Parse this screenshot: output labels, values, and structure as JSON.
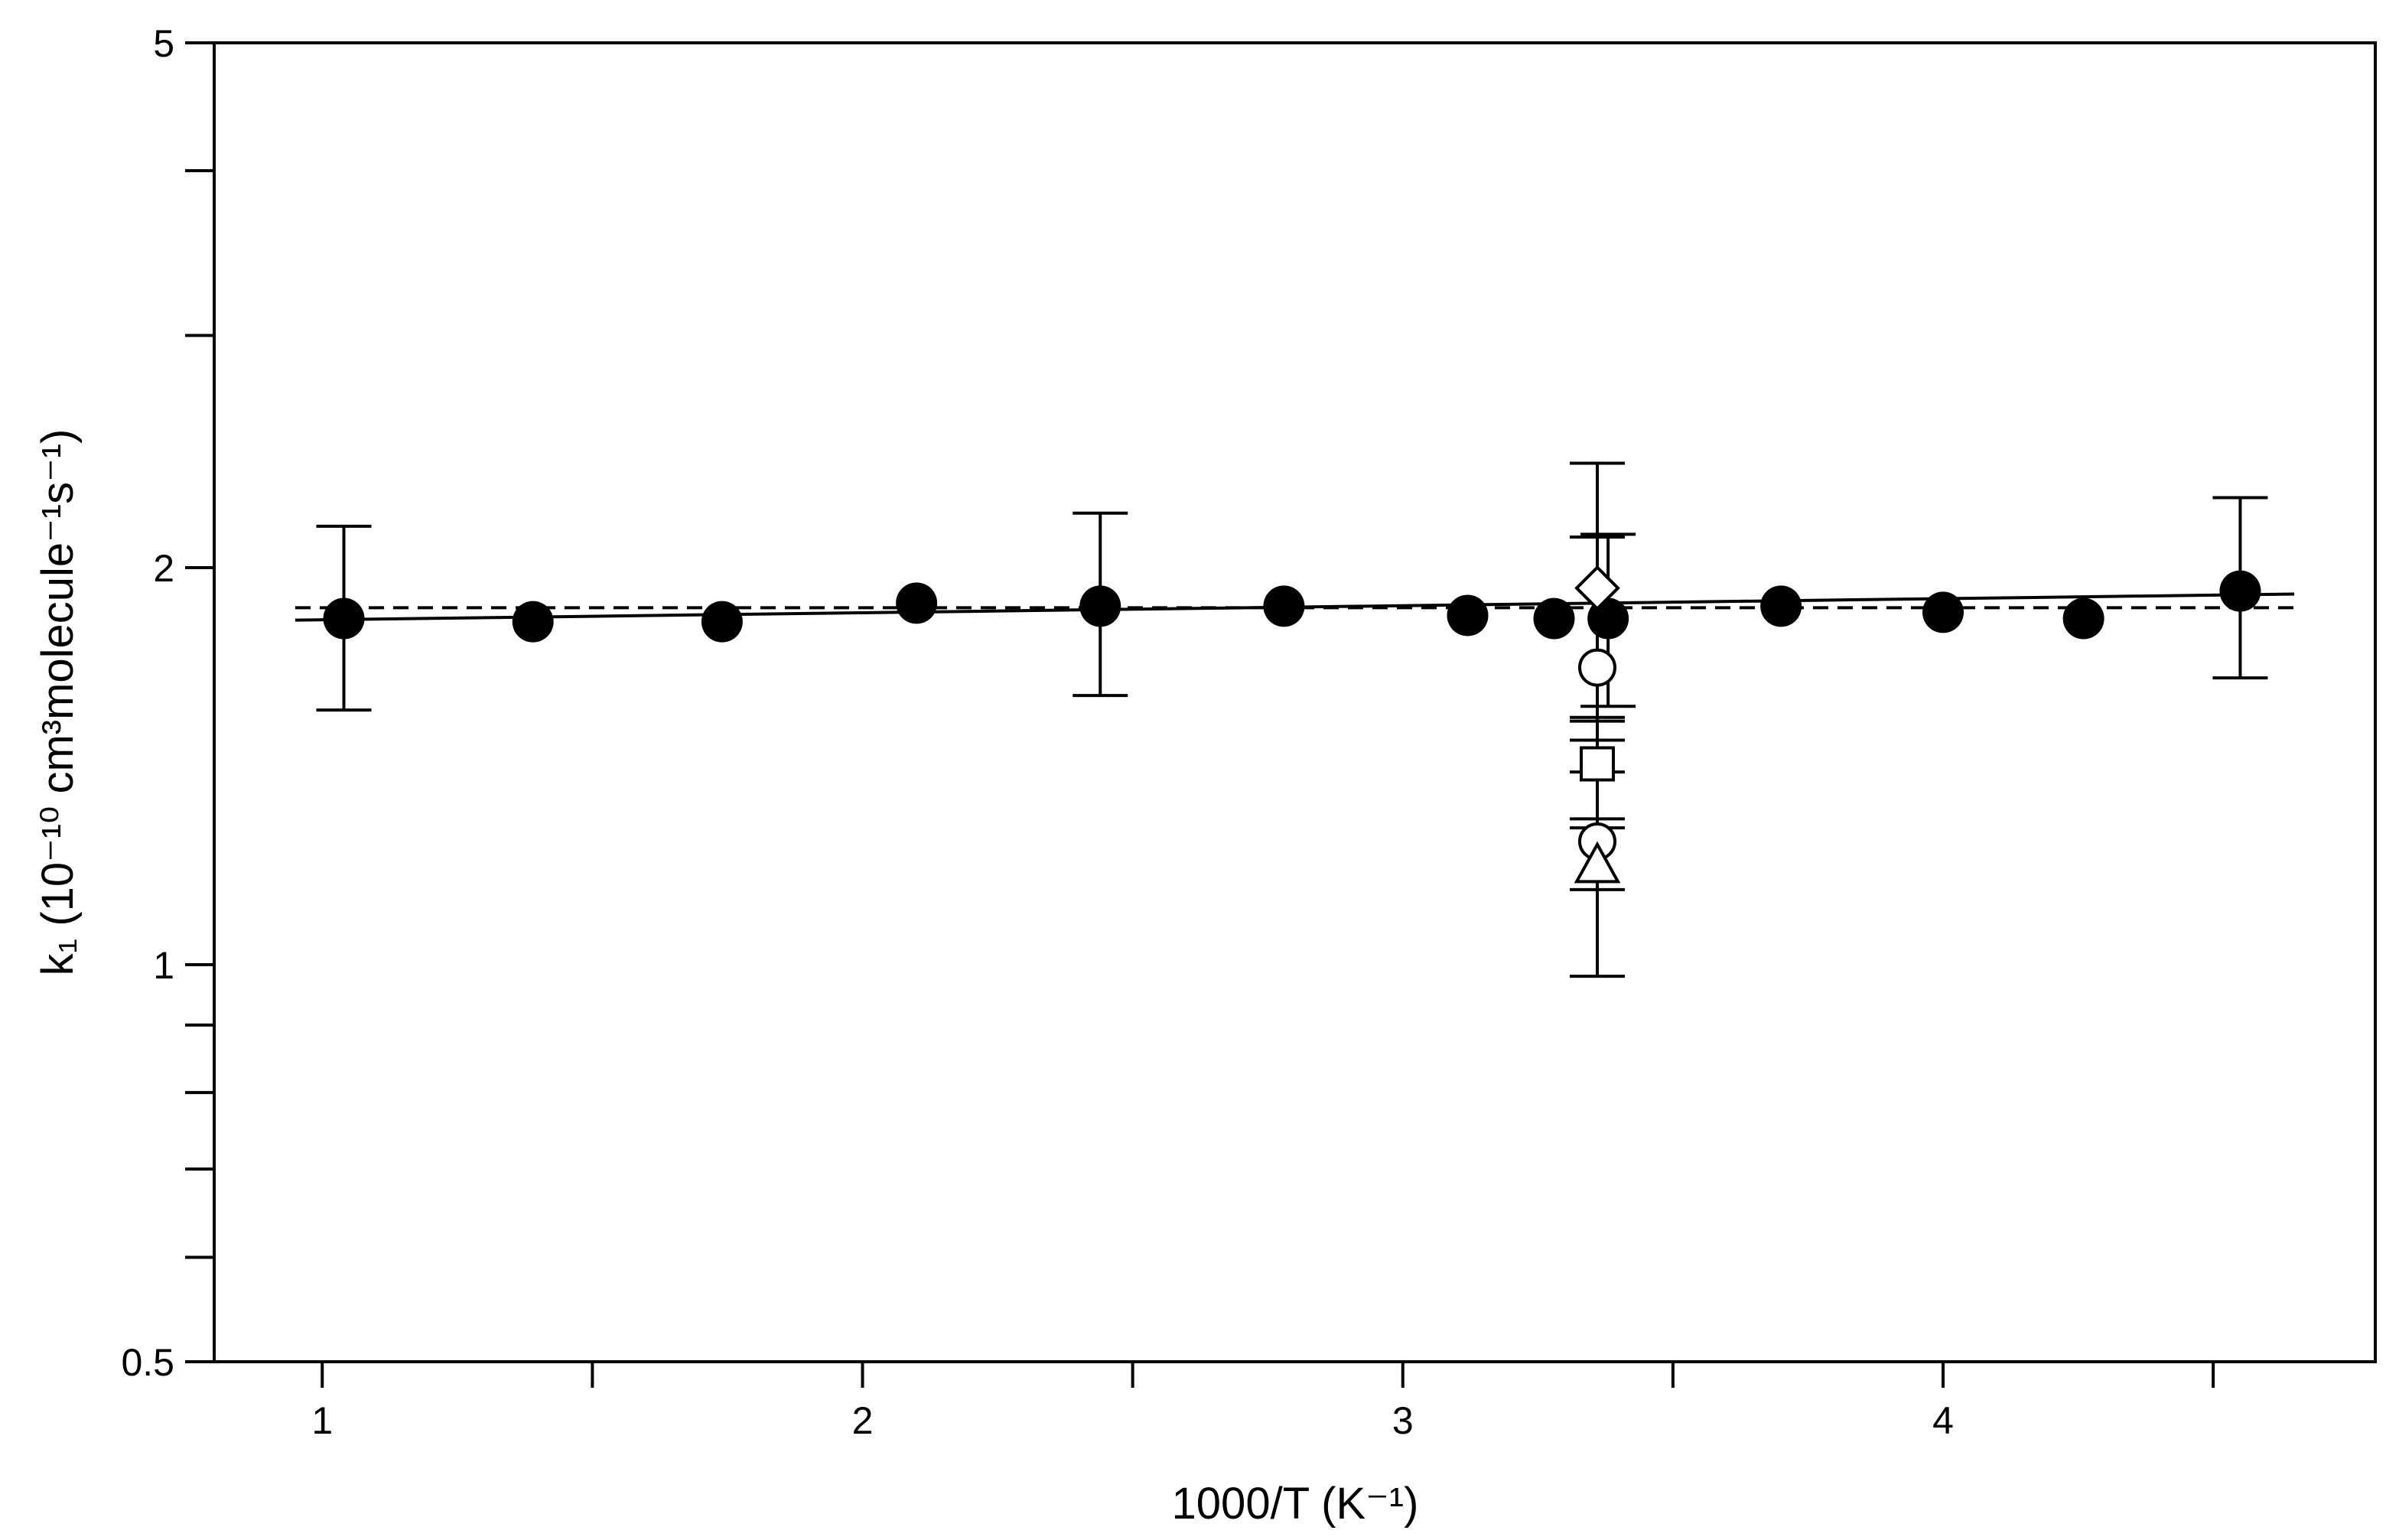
{
  "chart_data": {
    "type": "scatter",
    "xlabel": "1000/T (K⁻¹)",
    "ylabel": "k₁ (10⁻¹⁰ cm³molecule⁻¹s⁻¹)",
    "xlim": [
      0.8,
      4.8
    ],
    "ylim": [
      0.5,
      5
    ],
    "y_scale": "log",
    "x_ticks": [
      1,
      2,
      3,
      4
    ],
    "x_tick_labels": [
      "1",
      "2",
      "3",
      "4"
    ],
    "x_minor_ticks": [
      1.5,
      2.5,
      3.5,
      4.5
    ],
    "y_ticks": [
      0.5,
      1,
      2,
      5
    ],
    "y_tick_labels": [
      "0.5",
      "1",
      "2",
      "5"
    ],
    "y_minor_ticks": [
      0.6,
      0.7,
      0.8,
      0.9,
      3,
      4
    ],
    "grid": false,
    "series": [
      {
        "marker": "filled-circle",
        "x": [
          1.04,
          1.39,
          1.74,
          2.1,
          2.44,
          2.78,
          3.12,
          3.28,
          3.38,
          3.7,
          4.0,
          4.26,
          4.55
        ],
        "y": [
          1.83,
          1.82,
          1.82,
          1.88,
          1.87,
          1.87,
          1.84,
          1.83,
          1.83,
          1.87,
          1.85,
          1.83,
          1.92
        ],
        "err_low": [
          0.27,
          null,
          null,
          null,
          0.27,
          null,
          null,
          null,
          0.26,
          null,
          null,
          null,
          0.27
        ],
        "err_high": [
          0.32,
          null,
          null,
          null,
          0.33,
          null,
          null,
          null,
          0.29,
          null,
          null,
          null,
          0.34
        ]
      },
      {
        "marker": "open-diamond",
        "x": [
          3.36
        ],
        "y": [
          1.93
        ],
        "err_low": [
          0.4
        ],
        "err_high": [
          0.47
        ]
      },
      {
        "marker": "open-circle",
        "x": [
          3.36
        ],
        "y": [
          1.68
        ],
        "err_low": [
          0.2
        ],
        "err_high": [
          0.43
        ]
      },
      {
        "marker": "open-square",
        "x": [
          3.36
        ],
        "y": [
          1.42
        ],
        "err_low": [
          0.15
        ],
        "err_high": [
          0.12
        ]
      },
      {
        "marker": "open-circle",
        "x": [
          3.36
        ],
        "y": [
          1.24
        ],
        "err_low": [
          0.1
        ],
        "err_high": [
          0.05
        ]
      },
      {
        "marker": "open-triangle",
        "x": [
          3.36
        ],
        "y": [
          1.19
        ],
        "err_low": [
          0.21
        ],
        "err_high": [
          0.21
        ]
      }
    ],
    "fit_lines": [
      {
        "style": "solid",
        "x": [
          0.95,
          4.65
        ],
        "y": [
          1.825,
          1.91
        ]
      },
      {
        "style": "dashed",
        "x": [
          0.95,
          4.65
        ],
        "y": [
          1.865,
          1.865
        ]
      }
    ]
  }
}
